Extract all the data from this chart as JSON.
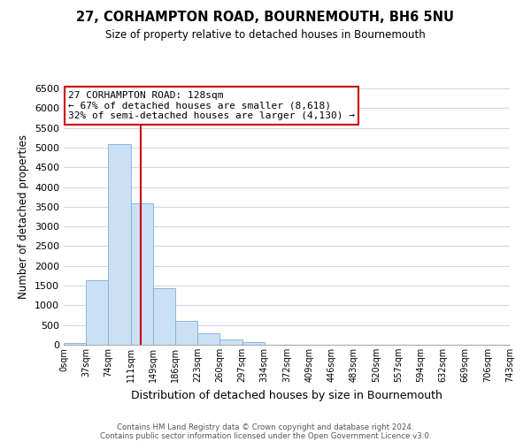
{
  "title": "27, CORHAMPTON ROAD, BOURNEMOUTH, BH6 5NU",
  "subtitle": "Size of property relative to detached houses in Bournemouth",
  "xlabel": "Distribution of detached houses by size in Bournemouth",
  "ylabel": "Number of detached properties",
  "bin_edges": [
    0,
    37,
    74,
    111,
    148,
    185,
    222,
    259,
    296,
    333,
    370,
    407,
    444,
    481,
    518,
    555,
    592,
    629,
    666,
    703,
    740
  ],
  "bin_labels": [
    "0sqm",
    "37sqm",
    "74sqm",
    "111sqm",
    "149sqm",
    "186sqm",
    "223sqm",
    "260sqm",
    "297sqm",
    "334sqm",
    "372sqm",
    "409sqm",
    "446sqm",
    "483sqm",
    "520sqm",
    "557sqm",
    "594sqm",
    "632sqm",
    "669sqm",
    "706sqm",
    "743sqm"
  ],
  "counts": [
    50,
    1640,
    5080,
    3590,
    1430,
    610,
    300,
    145,
    70,
    10,
    0,
    0,
    0,
    0,
    0,
    0,
    0,
    0,
    0,
    0
  ],
  "bar_color": "#cce0f5",
  "bar_edge_color": "#7ab0d8",
  "property_line_x": 128,
  "property_line_color": "#cc0000",
  "ylim": [
    0,
    6500
  ],
  "yticks": [
    0,
    500,
    1000,
    1500,
    2000,
    2500,
    3000,
    3500,
    4000,
    4500,
    5000,
    5500,
    6000,
    6500
  ],
  "annotation_title": "27 CORHAMPTON ROAD: 128sqm",
  "annotation_line1": "← 67% of detached houses are smaller (8,618)",
  "annotation_line2": "32% of semi-detached houses are larger (4,130) →",
  "annotation_box_color": "#ffffff",
  "annotation_box_edge": "#cc0000",
  "footer_line1": "Contains HM Land Registry data © Crown copyright and database right 2024.",
  "footer_line2": "Contains public sector information licensed under the Open Government Licence v3.0.",
  "background_color": "#ffffff",
  "grid_color": "#d0d8e8"
}
